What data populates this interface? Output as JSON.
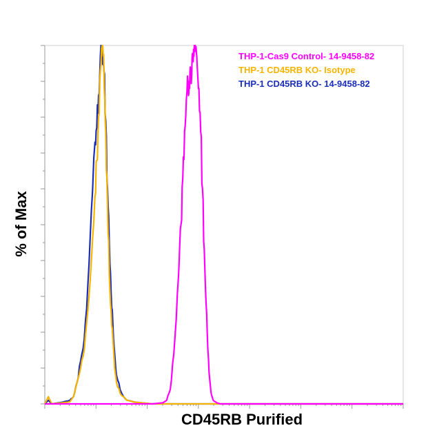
{
  "chart_data": {
    "type": "line",
    "title": "",
    "xlabel": "CD45RB Purified",
    "ylabel": "% of Max",
    "xlim": [
      0,
      100
    ],
    "ylim": [
      0,
      100
    ],
    "grid": false,
    "legend_placement": "top-right",
    "series": [
      {
        "name": "THP-1-Cas9 Control- 14-9458-82",
        "color": "#ff00ff",
        "x": [
          0,
          10,
          20,
          30,
          33,
          34,
          35,
          36,
          37,
          37.5,
          38,
          38.5,
          39,
          39.5,
          40,
          40.3,
          40.6,
          41,
          41.3,
          41.6,
          42,
          42.3,
          42.6,
          43,
          43.5,
          44,
          44.5,
          45,
          45.5,
          46,
          46.5,
          47,
          48,
          49,
          60,
          80,
          100
        ],
        "y": [
          0,
          0,
          0,
          0,
          0.3,
          1,
          4,
          14,
          31,
          40,
          50,
          63,
          76,
          85,
          89,
          90,
          94,
          92,
          96,
          97,
          100,
          98,
          93,
          88,
          76,
          60,
          43,
          28,
          15,
          7,
          2.5,
          1,
          0.3,
          0,
          0,
          0,
          0
        ]
      },
      {
        "name": "THP-1 CD45RB KO- Isotype",
        "color": "#f5b400",
        "x": [
          0,
          1,
          2,
          5,
          7,
          8,
          9,
          10,
          11,
          12,
          13,
          14,
          14.5,
          15,
          15.5,
          16,
          16.3,
          16.6,
          17,
          17.5,
          18,
          18.5,
          19,
          19.5,
          20,
          21,
          22,
          23,
          25,
          30,
          40,
          60,
          80,
          100
        ],
        "y": [
          0,
          2,
          0,
          0.3,
          0.6,
          2,
          6,
          10,
          15,
          26,
          40,
          58,
          68,
          80,
          93,
          100,
          97,
          88,
          76,
          55,
          36,
          26,
          18,
          10,
          6,
          3,
          2,
          1,
          0.5,
          0,
          0,
          0,
          0,
          0
        ],
        "style": "jagged"
      },
      {
        "name": "THP-1 CD45RB KO- 14-9458-82",
        "color": "#1a2eb8",
        "x": [
          0,
          1,
          2,
          5,
          7,
          8,
          9,
          10,
          11,
          12,
          13,
          14,
          14.5,
          15,
          15.5,
          16,
          16.5,
          17,
          17.5,
          18,
          18.5,
          19,
          19.5,
          20,
          21,
          22,
          23,
          25,
          30,
          40,
          60,
          80,
          100
        ],
        "y": [
          0,
          1,
          0,
          0.5,
          1,
          2,
          6,
          12,
          18,
          33,
          54,
          73,
          77,
          86,
          97,
          99,
          93,
          79,
          60,
          45,
          31,
          22,
          14,
          8,
          4,
          2,
          1,
          0.5,
          0,
          0,
          0,
          0,
          0
        ],
        "style": "jagged"
      }
    ]
  }
}
